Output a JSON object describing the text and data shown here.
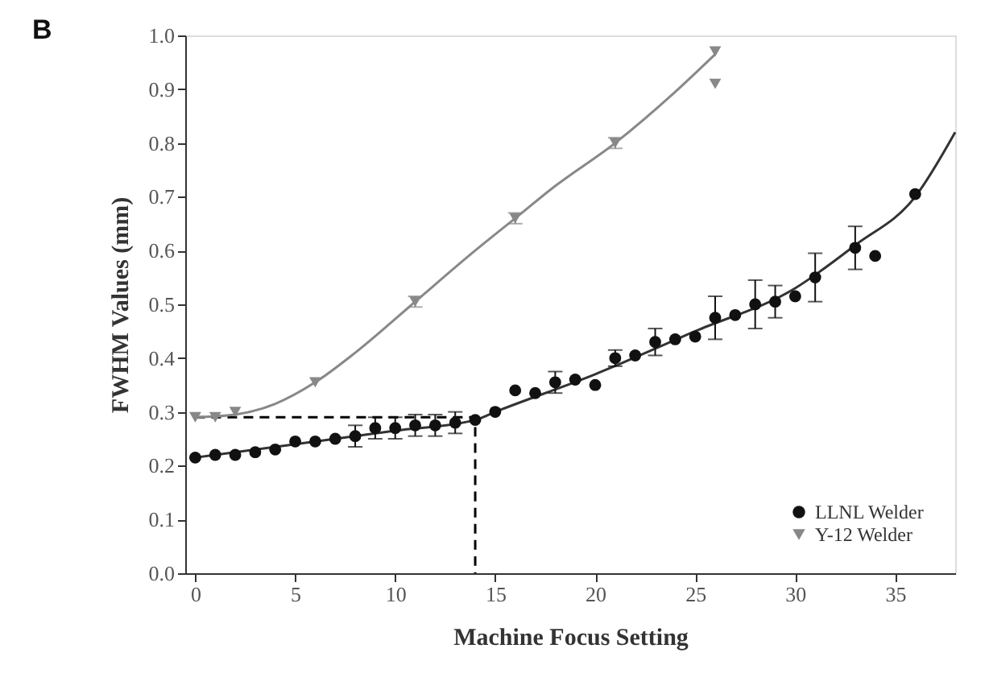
{
  "chart_data": {
    "type": "scatter",
    "xlabel": "Machine Focus Setting",
    "ylabel": "FWHM Values (mm)",
    "annotations": [
      "B"
    ],
    "xlim": [
      -0.5,
      38
    ],
    "xticks": [
      0,
      5,
      10,
      15,
      20,
      25,
      30,
      35
    ],
    "ylim": [
      0,
      1
    ],
    "yticks": [
      {
        "value": 0,
        "label": "0.0"
      },
      0.1,
      0.2,
      0.3,
      0.4,
      0.5,
      0.6,
      0.7,
      0.8,
      0.9,
      {
        "value": 1,
        "label": "1.0"
      }
    ],
    "grid": false,
    "legend": "bottom right",
    "series": [
      {
        "type": "line",
        "color": "#000000",
        "line_style": "dashed",
        "x": [
          0,
          14,
          14
        ],
        "values": [
          0.29,
          0.29,
          0
        ]
      },
      {
        "type": "line",
        "color": "#888888",
        "x": [
          0,
          2,
          4,
          6,
          8,
          11,
          14,
          16,
          18,
          21,
          24,
          26
        ],
        "values": [
          0.29,
          0.295,
          0.315,
          0.355,
          0.41,
          0.505,
          0.6,
          0.66,
          0.72,
          0.8,
          0.895,
          0.965
        ]
      },
      {
        "type": "line",
        "color": "#333333",
        "x": [
          0,
          5,
          10,
          14,
          15,
          20,
          25,
          30,
          33,
          36,
          38
        ],
        "values": [
          0.215,
          0.24,
          0.265,
          0.285,
          0.3,
          0.37,
          0.45,
          0.53,
          0.61,
          0.7,
          0.82
        ]
      },
      {
        "name": "LLNL Welder",
        "type": "scatter",
        "marker": "circle",
        "color": "#111111",
        "x": [
          0,
          1,
          2,
          3,
          4,
          5,
          6,
          7,
          8,
          9,
          10,
          11,
          12,
          13,
          14,
          15,
          16,
          17,
          18,
          19,
          20,
          21,
          22,
          23,
          24,
          25,
          26,
          27,
          28,
          29,
          30,
          31,
          33,
          34,
          36
        ],
        "values": [
          0.215,
          0.22,
          0.22,
          0.225,
          0.23,
          0.245,
          0.245,
          0.25,
          0.255,
          0.27,
          0.27,
          0.275,
          0.275,
          0.28,
          0.285,
          0.3,
          0.34,
          0.335,
          0.355,
          0.36,
          0.35,
          0.4,
          0.405,
          0.43,
          0.435,
          0.44,
          0.475,
          0.48,
          0.5,
          0.505,
          0.515,
          0.55,
          0.605,
          0.59,
          0.705
        ],
        "errors": [
          null,
          null,
          null,
          null,
          null,
          null,
          null,
          null,
          0.02,
          0.02,
          0.02,
          0.02,
          0.02,
          0.02,
          null,
          null,
          null,
          null,
          0.02,
          null,
          null,
          0.015,
          null,
          0.025,
          null,
          null,
          0.04,
          null,
          0.045,
          0.03,
          null,
          0.045,
          0.04,
          null,
          null
        ]
      },
      {
        "name": "Y-12 Welder",
        "type": "scatter",
        "marker": "triangle",
        "color": "#888888",
        "x": [
          0,
          1,
          2,
          6,
          11,
          16,
          21,
          26,
          26
        ],
        "values": [
          0.29,
          0.29,
          0.3,
          0.355,
          0.505,
          0.66,
          0.8,
          0.97,
          0.91
        ],
        "errors": [
          null,
          null,
          null,
          null,
          0.01,
          0.01,
          0.01,
          null,
          null
        ]
      }
    ]
  }
}
